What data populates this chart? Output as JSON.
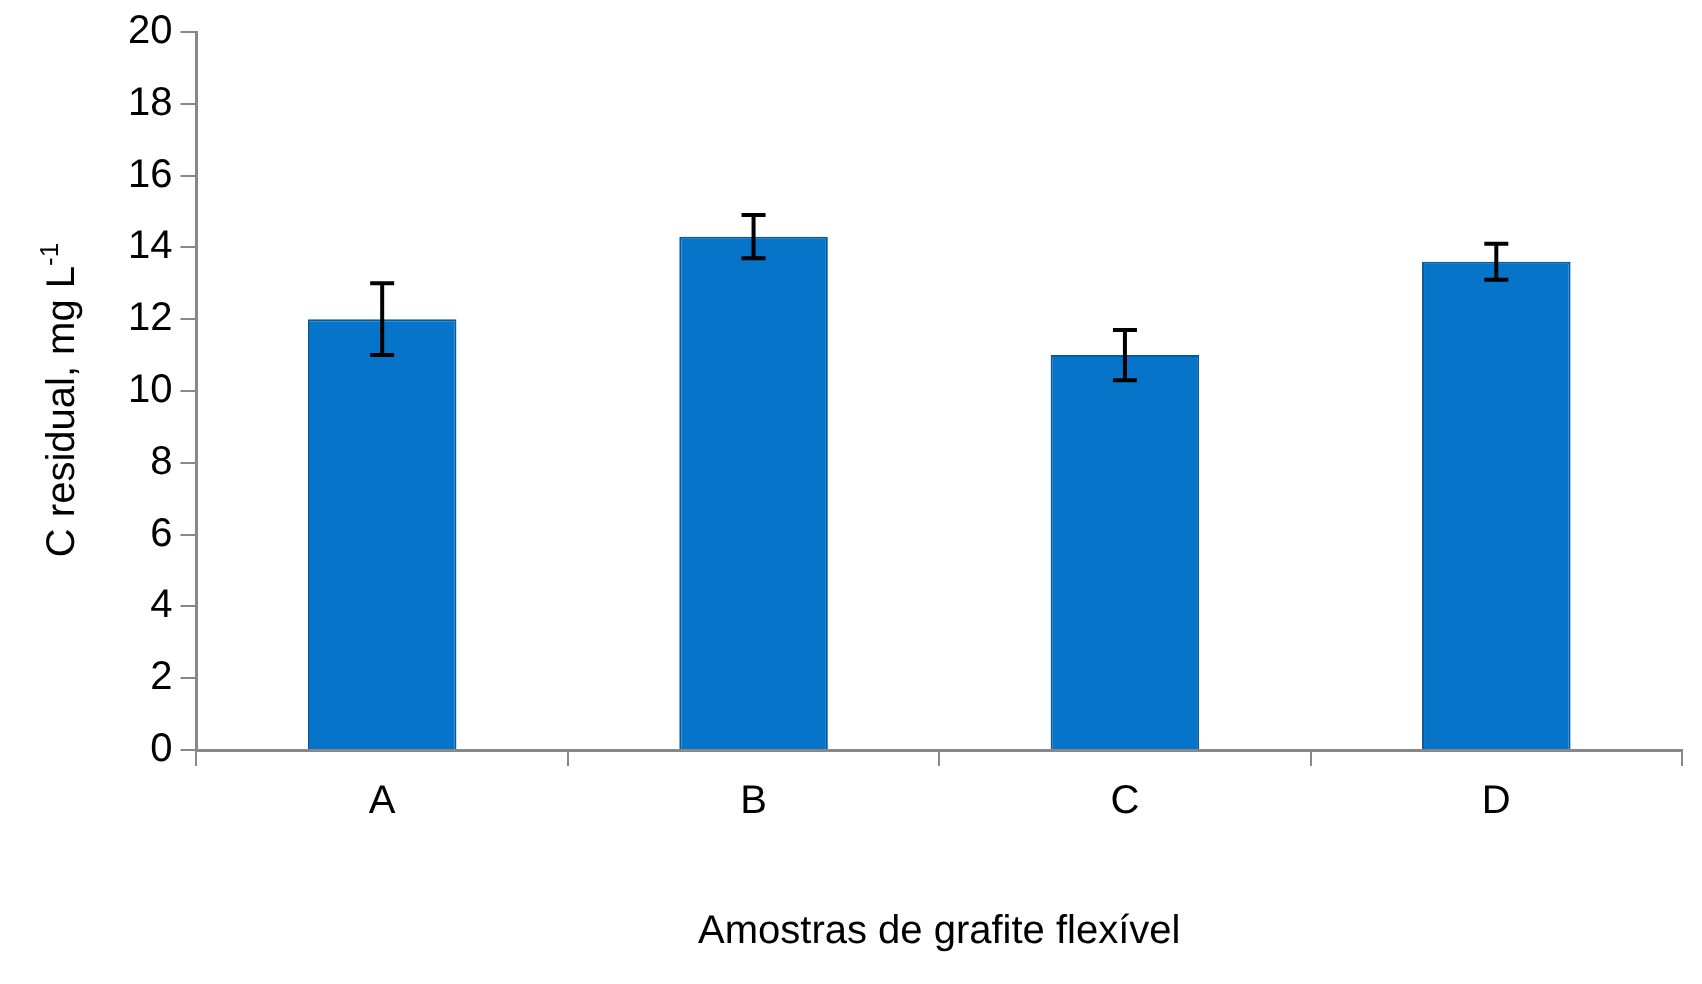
{
  "chart_data": {
    "type": "bar",
    "xlabel": "Amostras de grafite flexível",
    "ylabel": "C residual, mg L$^{-1}$",
    "categories": [
      "A",
      "B",
      "C",
      "D"
    ],
    "values": [
      12.0,
      14.3,
      11.0,
      13.6
    ],
    "errors": [
      1.0,
      0.6,
      0.7,
      0.5
    ],
    "color": "#0674c8",
    "ylim": [
      0,
      20
    ],
    "yticks": [
      0,
      2,
      4,
      6,
      8,
      10,
      12,
      14,
      16,
      18,
      20
    ],
    "grid": false,
    "legend": false
  }
}
